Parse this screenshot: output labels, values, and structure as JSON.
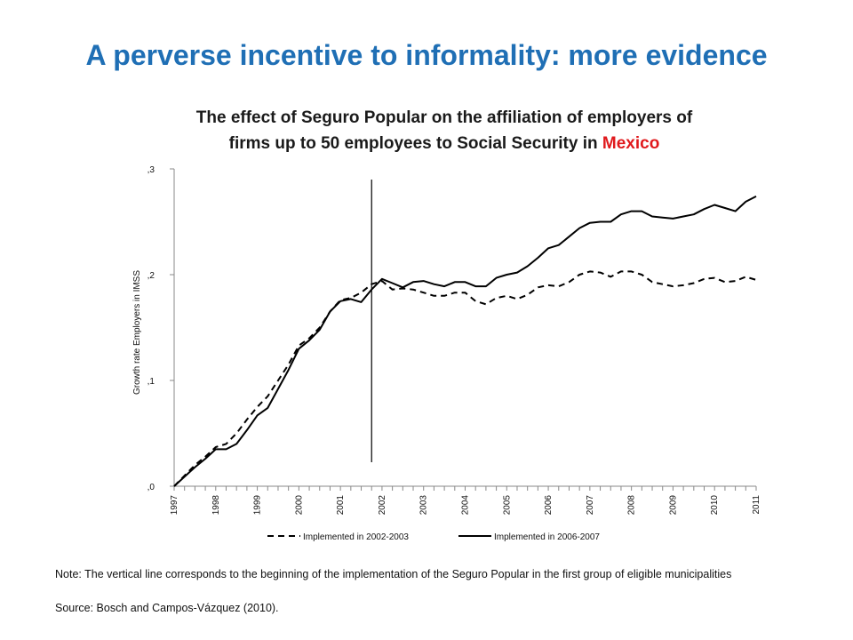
{
  "slide": {
    "title": "A perverse incentive to informality: more evidence"
  },
  "chart_title": {
    "line1": "The effect of Seguro Popular on the affiliation of employers of",
    "line2_prefix": "firms up to 50 employees to Social Security in",
    "line2_highlight": "Mexico"
  },
  "note": "Note: The vertical line corresponds to the beginning of the implementation of the Seguro Popular in the first group of eligible municipalities",
  "source": "Source: Bosch and Campos-Vázquez (2010).",
  "colors": {
    "title": "#1f6fb5",
    "highlight": "#e0191c",
    "series": "#000000"
  },
  "chart_data": {
    "type": "line",
    "title": "The effect of Seguro Popular on the affiliation of employers of firms up to 50 employees to Social Security in Mexico",
    "xlabel": "",
    "ylabel": "Growth rate Employers in IMSS",
    "xlim": [
      1997,
      2011
    ],
    "ylim": [
      0,
      0.3
    ],
    "yticks": [
      0,
      0.1,
      0.2,
      0.3
    ],
    "ytick_labels": [
      ",0",
      ",1",
      ",2",
      ",3"
    ],
    "xticks": [
      "1997",
      "1998",
      "1999",
      "2000",
      "2001",
      "2002",
      "2003",
      "2004",
      "2005",
      "2006",
      "2007",
      "2008",
      "2009",
      "2010",
      "2011"
    ],
    "vertical_line_x": 2001.75,
    "legend_position": "bottom",
    "grid": false,
    "series": [
      {
        "name": "Implemented in 2002-2003",
        "style": "dashed",
        "x": [
          1997,
          1997.25,
          1997.5,
          1997.75,
          1998,
          1998.25,
          1998.5,
          1998.75,
          1999,
          1999.25,
          1999.5,
          1999.75,
          2000,
          2000.25,
          2000.5,
          2000.75,
          2001,
          2001.25,
          2001.5,
          2001.75,
          2002,
          2002.25,
          2002.5,
          2002.75,
          2003,
          2003.25,
          2003.5,
          2003.75,
          2004,
          2004.25,
          2004.5,
          2004.75,
          2005,
          2005.25,
          2005.5,
          2005.75,
          2006,
          2006.25,
          2006.5,
          2006.75,
          2007,
          2007.25,
          2007.5,
          2007.75,
          2008,
          2008.25,
          2008.5,
          2008.75,
          2009,
          2009.25,
          2009.5,
          2009.75,
          2010,
          2010.25,
          2010.5,
          2010.75,
          2011
        ],
        "values": [
          0,
          0.01,
          0.02,
          0.028,
          0.037,
          0.04,
          0.05,
          0.063,
          0.075,
          0.085,
          0.1,
          0.115,
          0.133,
          0.14,
          0.15,
          0.165,
          0.176,
          0.178,
          0.183,
          0.191,
          0.194,
          0.186,
          0.187,
          0.186,
          0.183,
          0.18,
          0.18,
          0.183,
          0.183,
          0.175,
          0.172,
          0.178,
          0.18,
          0.177,
          0.181,
          0.188,
          0.19,
          0.189,
          0.193,
          0.2,
          0.203,
          0.202,
          0.198,
          0.203,
          0.203,
          0.2,
          0.193,
          0.191,
          0.189,
          0.19,
          0.192,
          0.196,
          0.197,
          0.193,
          0.194,
          0.198,
          0.195
        ]
      },
      {
        "name": "Implemented in 2006-2007",
        "style": "solid",
        "x": [
          1997,
          1997.25,
          1997.5,
          1997.75,
          1998,
          1998.25,
          1998.5,
          1998.75,
          1999,
          1999.25,
          1999.5,
          1999.75,
          2000,
          2000.25,
          2000.5,
          2000.75,
          2001,
          2001.25,
          2001.5,
          2001.75,
          2002,
          2002.25,
          2002.5,
          2002.75,
          2003,
          2003.25,
          2003.5,
          2003.75,
          2004,
          2004.25,
          2004.5,
          2004.75,
          2005,
          2005.25,
          2005.5,
          2005.75,
          2006,
          2006.25,
          2006.5,
          2006.75,
          2007,
          2007.25,
          2007.5,
          2007.75,
          2008,
          2008.25,
          2008.5,
          2008.75,
          2009,
          2009.25,
          2009.5,
          2009.75,
          2010,
          2010.25,
          2010.5,
          2010.75,
          2011
        ],
        "values": [
          0,
          0.009,
          0.018,
          0.026,
          0.035,
          0.035,
          0.04,
          0.053,
          0.067,
          0.074,
          0.092,
          0.11,
          0.13,
          0.138,
          0.148,
          0.165,
          0.175,
          0.177,
          0.174,
          0.186,
          0.196,
          0.192,
          0.188,
          0.193,
          0.194,
          0.191,
          0.189,
          0.193,
          0.193,
          0.189,
          0.189,
          0.197,
          0.2,
          0.202,
          0.208,
          0.216,
          0.225,
          0.228,
          0.236,
          0.244,
          0.249,
          0.25,
          0.25,
          0.257,
          0.26,
          0.26,
          0.255,
          0.254,
          0.253,
          0.255,
          0.257,
          0.262,
          0.266,
          0.263,
          0.26,
          0.269,
          0.274
        ]
      }
    ]
  }
}
